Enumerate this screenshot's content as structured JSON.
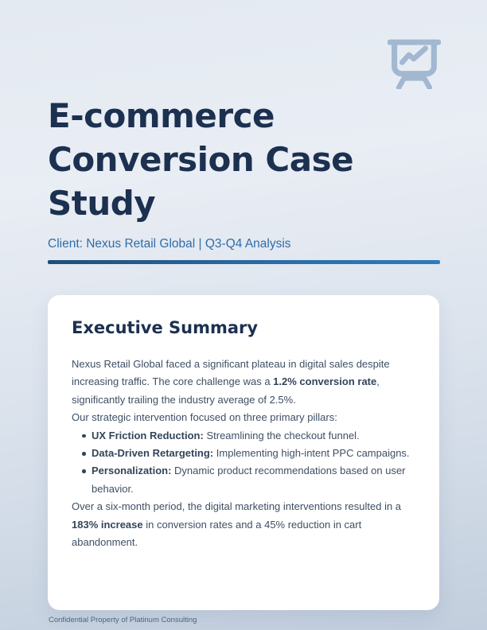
{
  "header": {
    "title": "E-commerce Conversion Case Study",
    "subtitle": "Client: Nexus Retail Global | Q3-Q4 Analysis",
    "icon": "presentation-chart-icon"
  },
  "summary_card": {
    "heading": "Executive Summary",
    "content": [
      {
        "type": "paragraph",
        "segments": [
          {
            "text": "Nexus Retail Global faced a significant plateau in digital sales despite increasing traffic. The core challenge was a ",
            "bold": false
          },
          {
            "text": "1.2% conversion rate",
            "bold": true
          },
          {
            "text": ", significantly trailing the industry average of 2.5%.",
            "bold": false
          }
        ]
      },
      {
        "type": "paragraph",
        "segments": [
          {
            "text": "Our strategic intervention focused on three primary pillars:",
            "bold": false
          }
        ]
      },
      {
        "type": "bullet",
        "segments": [
          {
            "text": "UX Friction Reduction:",
            "bold": true
          },
          {
            "text": " Streamlining the checkout funnel.",
            "bold": false
          }
        ]
      },
      {
        "type": "bullet",
        "segments": [
          {
            "text": "Data-Driven Retargeting:",
            "bold": true
          },
          {
            "text": " Implementing high-intent PPC campaigns.",
            "bold": false
          }
        ]
      },
      {
        "type": "bullet",
        "segments": [
          {
            "text": "Personalization:",
            "bold": true
          },
          {
            "text": " Dynamic product recommendations based on user behavior.",
            "bold": false
          }
        ]
      },
      {
        "type": "paragraph",
        "segments": [
          {
            "text": "Over a six-month period, the digital marketing interventions resulted in a ",
            "bold": false
          },
          {
            "text": "183% increase",
            "bold": true
          },
          {
            "text": " in conversion rates and a 45% reduction in cart abandonment.",
            "bold": false
          }
        ]
      }
    ]
  },
  "footer": {
    "text": "Confidential Property of Platinum Consulting"
  },
  "colors": {
    "title_text": "#1c3050",
    "subtitle_text": "#2f6da8",
    "accent_bar_start": "#1f4e79",
    "accent_bar_end": "#2e7cba",
    "body_text": "#3e4f64",
    "bold_text": "#33455a",
    "card_background": "#ffffff",
    "page_background_top": "#e4eaf2",
    "page_background_bottom": "#c2cedd",
    "icon_color": "#a2b8d1",
    "footer_text": "#4d657e"
  }
}
